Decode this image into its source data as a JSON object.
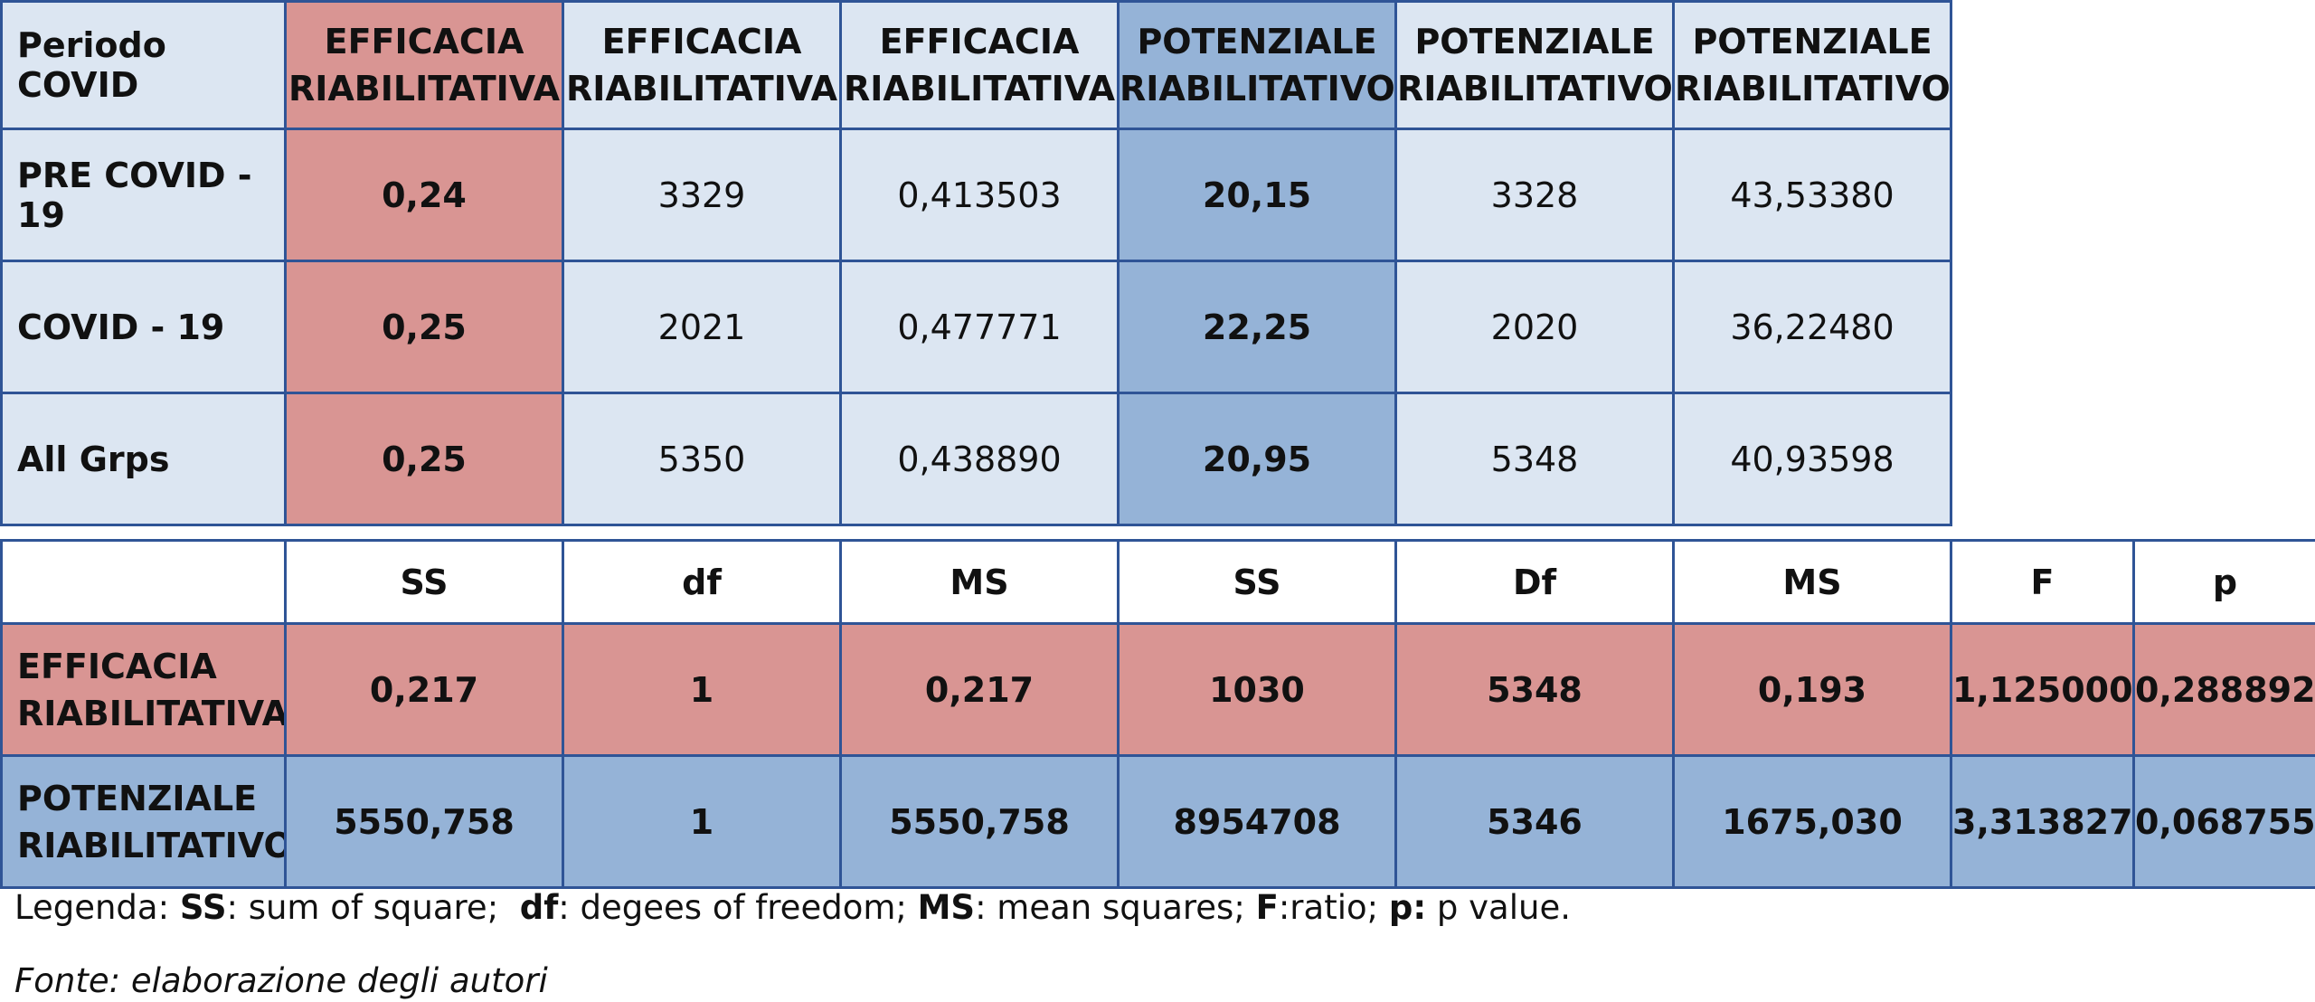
{
  "table1": {
    "headers": [
      "Periodo COVID",
      "EFFICACIA RIABILITATIVA",
      "EFFICACIA RIABILITATIVA",
      "EFFICACIA RIABILITATIVA",
      "POTENZIALE RIABILITATIVO",
      "POTENZIALE RIABILITATIVO",
      "POTENZIALE RIABILITATIVO"
    ],
    "rows": [
      [
        "PRE COVID - 19",
        "0,24",
        "3329",
        "0,413503",
        "20,15",
        "3328",
        "43,53380"
      ],
      [
        "COVID - 19",
        "0,25",
        "2021",
        "0,477771",
        "22,25",
        "2020",
        "36,22480"
      ],
      [
        "All Grps",
        "0,25",
        "5350",
        "0,438890",
        "20,95",
        "5348",
        "40,93598"
      ]
    ]
  },
  "table2": {
    "headers": [
      "",
      "SS",
      "df",
      "MS",
      "SS",
      "Df",
      "MS",
      "F",
      "p"
    ],
    "rows": [
      [
        "EFFICACIA RIABILITATIVA",
        "0,217",
        "1",
        "0,217",
        "1030",
        "5348",
        "0,193",
        "1,125000",
        "0,288892"
      ],
      [
        "POTENZIALE RIABILITATIVO",
        "5550,758",
        "1",
        "5550,758",
        "8954708",
        "5346",
        "1675,030",
        "3,313827",
        "0,068755"
      ]
    ]
  },
  "legend": {
    "prefix": "Legenda: ",
    "ss_key": "SS",
    "ss_text": ": sum of square;  ",
    "df_key": "df",
    "df_text": ": degees of freedom; ",
    "ms_key": "MS",
    "ms_text": ": mean squares; ",
    "f_key": "F",
    "f_text": ":ratio; ",
    "p_key": "p:",
    "p_text": " p value."
  },
  "source": "Fonte: elaborazione degli autori",
  "colors": {
    "border": "#2f5496",
    "light_blue": "#dce6f2",
    "red": "#d99593",
    "blue": "#95b3d7"
  }
}
